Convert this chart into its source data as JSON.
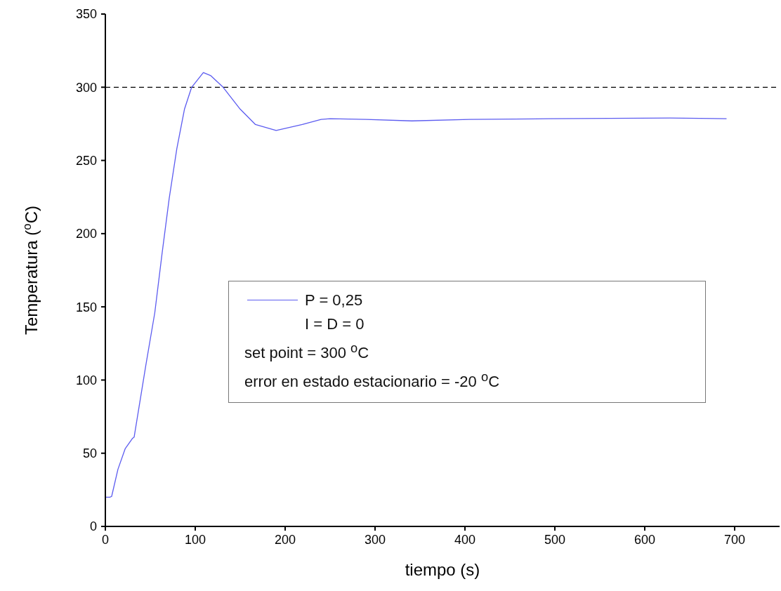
{
  "chart_data": {
    "type": "line",
    "xlabel": "tiempo (s)",
    "ylabel": "Temperatura ($^{o}$C)",
    "x": [
      0,
      5,
      7,
      14,
      22,
      30,
      32,
      45,
      55,
      63,
      71,
      79.5,
      88,
      96,
      109,
      117,
      131,
      150,
      167,
      190,
      219,
      240,
      250,
      290,
      341,
      405,
      493,
      628,
      691
    ],
    "series": [
      {
        "name": "P = 0,25",
        "color": "#5c5cf0",
        "values": [
          20,
          20,
          20.5,
          39,
          53,
          60,
          61,
          110,
          146,
          186,
          224,
          258,
          285,
          300,
          310,
          308,
          300,
          285,
          274.5,
          270.5,
          274.5,
          278,
          278.5,
          278,
          277,
          278,
          278.5,
          279,
          278.5
        ]
      }
    ],
    "xlim": [
      0,
      750
    ],
    "xticks": [
      0,
      100,
      200,
      300,
      400,
      500,
      600,
      700
    ],
    "ylim": [
      0,
      350
    ],
    "yticks": [
      0,
      50,
      100,
      150,
      200,
      250,
      300,
      350
    ],
    "ref_lines": [
      {
        "axis": "y",
        "value": 300,
        "color": "#000000",
        "line_style": "dashed"
      }
    ],
    "annotations": [
      "I = D = 0",
      "set point = 300 $^{o}$C",
      "error en estado estacionario = -20 $^{o}$C"
    ],
    "legend": "center",
    "marker": "none",
    "line_style": "solid"
  }
}
